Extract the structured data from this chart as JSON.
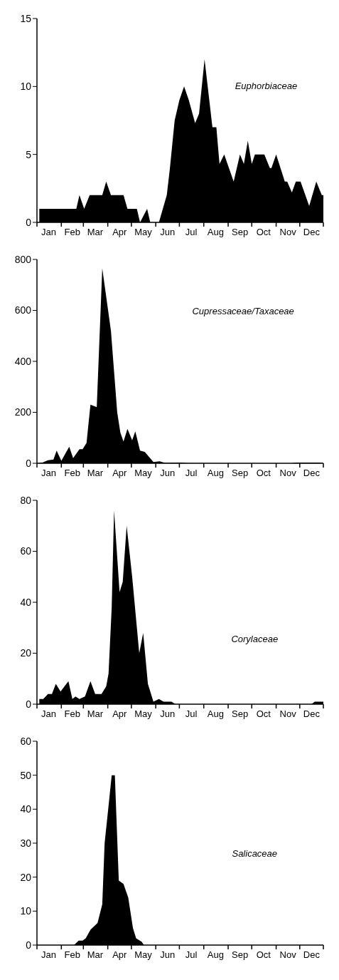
{
  "chart_data": [
    {
      "type": "area",
      "color": "#000000",
      "annotations": [
        "Euphorbiaceae"
      ],
      "xlim": [
        "--01-01",
        "--12-31"
      ],
      "ylim": [
        0,
        15
      ],
      "yticks": [
        0,
        5,
        10,
        15
      ],
      "xticks": [
        {
          "value": "--01-01",
          "label": null
        },
        {
          "value": "--01-16",
          "label": "Jan"
        },
        {
          "value": "--02-01",
          "label": null
        },
        {
          "value": "--02-15",
          "label": "Feb"
        },
        {
          "value": "--03-01",
          "label": null
        },
        {
          "value": "--03-16",
          "label": "Mar"
        },
        {
          "value": "--04-01",
          "label": null
        },
        {
          "value": "--04-16",
          "label": "Apr"
        },
        {
          "value": "--05-01",
          "label": null
        },
        {
          "value": "--05-16",
          "label": "May"
        },
        {
          "value": "--06-01",
          "label": null
        },
        {
          "value": "--06-16",
          "label": "Jun"
        },
        {
          "value": "--07-01",
          "label": null
        },
        {
          "value": "--07-16",
          "label": "Jul"
        },
        {
          "value": "--08-01",
          "label": null
        },
        {
          "value": "--08-16",
          "label": "Aug"
        },
        {
          "value": "--09-01",
          "label": null
        },
        {
          "value": "--09-16",
          "label": "Sep"
        },
        {
          "value": "--10-01",
          "label": null
        },
        {
          "value": "--10-16",
          "label": "Oct"
        },
        {
          "value": "--11-01",
          "label": null
        },
        {
          "value": "--11-16",
          "label": "Nov"
        },
        {
          "value": "--12-01",
          "label": null
        },
        {
          "value": "--12-16",
          "label": "Dec"
        },
        {
          "value": "--12-31",
          "label": null
        }
      ],
      "x": [
        "--01-04",
        "--02-20",
        "--02-24",
        "--03-02",
        "--03-09",
        "--03-25",
        "--03-30",
        "--04-05",
        "--04-21",
        "--04-26",
        "--05-08",
        "--05-12",
        "--05-21",
        "--05-25",
        "--06-05",
        "--06-15",
        "--06-19",
        "--06-25",
        "--07-01",
        "--07-07",
        "--07-13",
        "--07-21",
        "--07-26",
        "--08-02",
        "--08-06",
        "--08-12",
        "--08-17",
        "--08-21",
        "--08-27",
        "--09-08",
        "--09-16",
        "--09-21",
        "--09-26",
        "--10-01",
        "--10-05",
        "--10-17",
        "--10-24",
        "--10-26",
        "--11-01",
        "--11-12",
        "--11-15",
        "--11-21",
        "--11-26",
        "--12-02",
        "--12-13",
        "--12-22",
        "--12-29",
        "--12-31"
      ],
      "values": [
        1,
        1,
        2,
        1,
        2,
        2,
        3,
        2,
        2,
        1,
        1,
        0,
        1,
        0,
        0,
        2,
        4,
        7.5,
        9,
        10,
        9,
        7.3,
        8,
        12,
        10,
        7,
        7,
        4.3,
        5,
        3,
        5,
        4.3,
        6,
        4.3,
        5,
        5,
        4,
        4,
        5,
        3,
        3,
        2.2,
        3,
        3,
        1.2,
        3,
        2,
        2
      ]
    },
    {
      "type": "area",
      "color": "#000000",
      "annotations": [
        "Cupressaceae/Taxaceae"
      ],
      "xlim": [
        "--01-01",
        "--12-31"
      ],
      "ylim": [
        0,
        800
      ],
      "yticks": [
        0,
        200,
        400,
        600,
        800
      ],
      "xticks": [
        {
          "value": "--01-01",
          "label": null
        },
        {
          "value": "--01-16",
          "label": "Jan"
        },
        {
          "value": "--02-01",
          "label": null
        },
        {
          "value": "--02-15",
          "label": "Feb"
        },
        {
          "value": "--03-01",
          "label": null
        },
        {
          "value": "--03-16",
          "label": "Mar"
        },
        {
          "value": "--04-01",
          "label": null
        },
        {
          "value": "--04-16",
          "label": "Apr"
        },
        {
          "value": "--05-01",
          "label": null
        },
        {
          "value": "--05-16",
          "label": "May"
        },
        {
          "value": "--06-01",
          "label": null
        },
        {
          "value": "--06-16",
          "label": "Jun"
        },
        {
          "value": "--07-01",
          "label": null
        },
        {
          "value": "--07-16",
          "label": "Jul"
        },
        {
          "value": "--08-01",
          "label": null
        },
        {
          "value": "--08-16",
          "label": "Aug"
        },
        {
          "value": "--09-01",
          "label": null
        },
        {
          "value": "--09-16",
          "label": "Sep"
        },
        {
          "value": "--10-01",
          "label": null
        },
        {
          "value": "--10-16",
          "label": "Oct"
        },
        {
          "value": "--11-01",
          "label": null
        },
        {
          "value": "--11-16",
          "label": "Nov"
        },
        {
          "value": "--12-01",
          "label": null
        },
        {
          "value": "--12-16",
          "label": "Dec"
        },
        {
          "value": "--12-31",
          "label": null
        }
      ],
      "x": [
        "--01-01",
        "--01-08",
        "--01-15",
        "--01-22",
        "--01-26",
        "--02-01",
        "--02-11",
        "--02-16",
        "--02-24",
        "--02-28",
        "--03-05",
        "--03-10",
        "--03-18",
        "--03-25",
        "--04-05",
        "--04-13",
        "--04-17",
        "--04-21",
        "--04-26",
        "--05-02",
        "--05-06",
        "--05-12",
        "--05-18",
        "--05-29",
        "--06-06",
        "--06-12",
        "--07-03",
        "--07-12",
        "--09-01",
        "--11-20",
        "--11-28",
        "--12-26",
        "--12-31"
      ],
      "values": [
        0,
        3,
        12,
        15,
        50,
        10,
        65,
        20,
        55,
        55,
        80,
        230,
        220,
        765,
        520,
        200,
        120,
        85,
        135,
        90,
        125,
        50,
        45,
        5,
        8,
        2,
        3,
        1,
        0,
        0,
        3,
        3,
        0
      ]
    },
    {
      "type": "area",
      "color": "#000000",
      "annotations": [
        "Corylaceae"
      ],
      "xlim": [
        "--01-01",
        "--12-31"
      ],
      "ylim": [
        0,
        80
      ],
      "yticks": [
        0,
        20,
        40,
        60,
        80
      ],
      "xticks": [
        {
          "value": "--01-01",
          "label": null
        },
        {
          "value": "--01-16",
          "label": "Jan"
        },
        {
          "value": "--02-01",
          "label": null
        },
        {
          "value": "--02-15",
          "label": "Feb"
        },
        {
          "value": "--03-01",
          "label": null
        },
        {
          "value": "--03-16",
          "label": "Mar"
        },
        {
          "value": "--04-01",
          "label": null
        },
        {
          "value": "--04-16",
          "label": "Apr"
        },
        {
          "value": "--05-01",
          "label": null
        },
        {
          "value": "--05-16",
          "label": "May"
        },
        {
          "value": "--06-01",
          "label": null
        },
        {
          "value": "--06-16",
          "label": "Jun"
        },
        {
          "value": "--07-01",
          "label": null
        },
        {
          "value": "--07-16",
          "label": "Jul"
        },
        {
          "value": "--08-01",
          "label": null
        },
        {
          "value": "--08-16",
          "label": "Aug"
        },
        {
          "value": "--09-01",
          "label": null
        },
        {
          "value": "--09-16",
          "label": "Sep"
        },
        {
          "value": "--10-01",
          "label": null
        },
        {
          "value": "--10-16",
          "label": "Oct"
        },
        {
          "value": "--11-01",
          "label": null
        },
        {
          "value": "--11-16",
          "label": "Nov"
        },
        {
          "value": "--12-01",
          "label": null
        },
        {
          "value": "--12-16",
          "label": "Dec"
        },
        {
          "value": "--12-31",
          "label": null
        }
      ],
      "x": [
        "--01-04",
        "--01-09",
        "--01-15",
        "--01-20",
        "--01-25",
        "--01-31",
        "--02-10",
        "--02-15",
        "--02-19",
        "--02-24",
        "--03-03",
        "--03-10",
        "--03-16",
        "--03-24",
        "--03-30",
        "--04-02",
        "--04-06",
        "--04-09",
        "--04-16",
        "--04-20",
        "--04-25",
        "--05-02",
        "--05-11",
        "--05-16",
        "--05-22",
        "--05-29",
        "--06-05",
        "--06-11",
        "--06-21",
        "--06-26",
        "--12-16",
        "--12-20",
        "--12-31"
      ],
      "values": [
        2,
        2,
        4,
        4,
        8,
        5,
        9,
        2,
        3,
        2,
        3,
        9,
        4,
        4,
        7,
        12,
        38,
        76,
        44,
        48,
        70,
        50,
        20,
        28,
        8,
        1,
        2,
        1,
        1,
        0,
        0,
        1,
        1
      ]
    },
    {
      "type": "area",
      "color": "#000000",
      "annotations": [
        "Salicaceae"
      ],
      "xlim": [
        "--01-01",
        "--12-31"
      ],
      "ylim": [
        0,
        60
      ],
      "yticks": [
        0,
        10,
        20,
        30,
        40,
        50,
        60
      ],
      "xticks": [
        {
          "value": "--01-01",
          "label": null
        },
        {
          "value": "--01-16",
          "label": "Jan"
        },
        {
          "value": "--02-01",
          "label": null
        },
        {
          "value": "--02-15",
          "label": "Feb"
        },
        {
          "value": "--03-01",
          "label": null
        },
        {
          "value": "--03-16",
          "label": "Mar"
        },
        {
          "value": "--04-01",
          "label": null
        },
        {
          "value": "--04-16",
          "label": "Apr"
        },
        {
          "value": "--05-01",
          "label": null
        },
        {
          "value": "--05-16",
          "label": "May"
        },
        {
          "value": "--06-01",
          "label": null
        },
        {
          "value": "--06-16",
          "label": "Jun"
        },
        {
          "value": "--07-01",
          "label": null
        },
        {
          "value": "--07-16",
          "label": "Jul"
        },
        {
          "value": "--08-01",
          "label": null
        },
        {
          "value": "--08-16",
          "label": "Aug"
        },
        {
          "value": "--09-01",
          "label": null
        },
        {
          "value": "--09-16",
          "label": "Sep"
        },
        {
          "value": "--10-01",
          "label": null
        },
        {
          "value": "--10-16",
          "label": "Oct"
        },
        {
          "value": "--11-01",
          "label": null
        },
        {
          "value": "--11-16",
          "label": "Nov"
        },
        {
          "value": "--12-01",
          "label": null
        },
        {
          "value": "--12-16",
          "label": "Dec"
        },
        {
          "value": "--12-31",
          "label": null
        }
      ],
      "x": [
        "--01-01",
        "--02-17",
        "--02-23",
        "--02-28",
        "--03-04",
        "--03-10",
        "--03-19",
        "--03-25",
        "--03-28",
        "--04-02",
        "--04-06",
        "--04-10",
        "--04-15",
        "--04-21",
        "--04-27",
        "--05-03",
        "--05-07",
        "--05-14",
        "--05-17",
        "--12-31"
      ],
      "values": [
        0,
        0,
        1.3,
        1.3,
        2,
        4.5,
        6.5,
        12,
        30,
        41,
        50,
        50,
        19,
        18,
        14,
        5,
        2,
        1,
        0,
        0
      ]
    }
  ]
}
